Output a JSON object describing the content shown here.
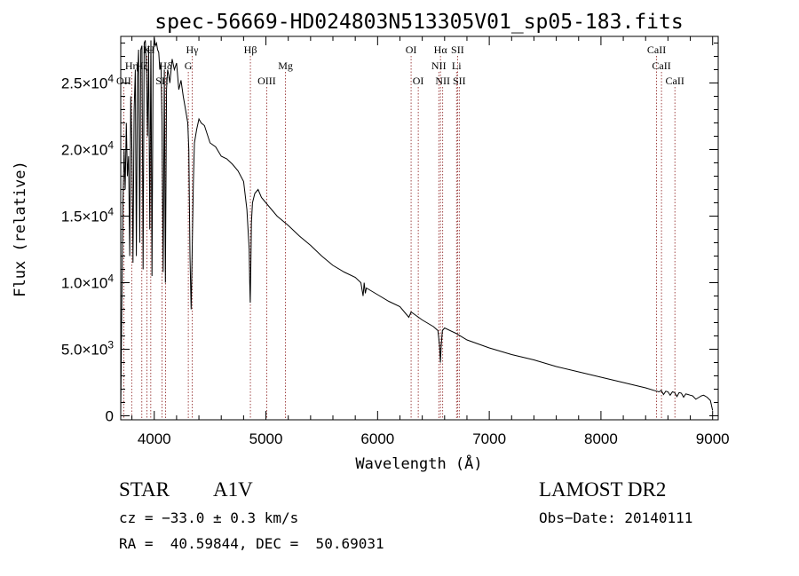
{
  "chart_data": {
    "type": "line",
    "title": "spec-56669-HD024803N513305V01_sp05-183.fits",
    "xlabel": "Wavelength (Å)",
    "ylabel": "Flux (relative)",
    "xlim": [
      3700,
      9050
    ],
    "ylim": [
      -300,
      28500
    ],
    "x_ticks": [
      {
        "v": 4000,
        "label": "4000"
      },
      {
        "v": 5000,
        "label": "5000"
      },
      {
        "v": 6000,
        "label": "6000"
      },
      {
        "v": 7000,
        "label": "7000"
      },
      {
        "v": 8000,
        "label": "8000"
      },
      {
        "v": 9000,
        "label": "9000"
      }
    ],
    "y_ticks": [
      {
        "v": 0,
        "mant": "0",
        "exp": ""
      },
      {
        "v": 5000,
        "mant": "5.0×10",
        "exp": "3"
      },
      {
        "v": 10000,
        "mant": "1.0×10",
        "exp": "4"
      },
      {
        "v": 15000,
        "mant": "1.5×10",
        "exp": "4"
      },
      {
        "v": 20000,
        "mant": "2.0×10",
        "exp": "4"
      },
      {
        "v": 25000,
        "mant": "2.5×10",
        "exp": "4"
      }
    ],
    "series": [
      {
        "x": [
          3700,
          3710,
          3720,
          3730,
          3740,
          3750,
          3760,
          3770,
          3780,
          3790,
          3800,
          3810,
          3820,
          3830,
          3840,
          3850,
          3860,
          3870,
          3880,
          3890,
          3900,
          3910,
          3920,
          3930,
          3940,
          3950,
          3960,
          3970,
          3980,
          3990,
          4000,
          4010,
          4020,
          4030,
          4040,
          4050,
          4060,
          4070,
          4080,
          4090,
          4100,
          4110,
          4120,
          4130,
          4140,
          4160,
          4180,
          4200,
          4220,
          4240,
          4260,
          4280,
          4300,
          4310,
          4320,
          4330,
          4340,
          4350,
          4360,
          4380,
          4400,
          4420,
          4450,
          4500,
          4550,
          4600,
          4650,
          4700,
          4750,
          4800,
          4830,
          4850,
          4855,
          4860,
          4865,
          4870,
          4880,
          4900,
          4930,
          4960,
          5000,
          5100,
          5200,
          5300,
          5400,
          5500,
          5600,
          5700,
          5800,
          5850,
          5870,
          5880,
          5890,
          5900,
          6000,
          6100,
          6200,
          6280,
          6300,
          6400,
          6500,
          6540,
          6555,
          6563,
          6570,
          6580,
          6600,
          6700,
          6800,
          7000,
          7200,
          7400,
          7600,
          7800,
          8000,
          8200,
          8400,
          8500,
          8520,
          8540,
          8560,
          8580,
          8600,
          8620,
          8640,
          8660,
          8680,
          8700,
          8720,
          8740,
          8760,
          8780,
          8800,
          8820,
          8850,
          8880,
          8900,
          8920,
          8950,
          8980,
          9000
        ],
        "y": [
          300,
          9000,
          16000,
          20000,
          17000,
          22000,
          18000,
          19500,
          12000,
          24000,
          20000,
          11500,
          23000,
          26000,
          12000,
          25500,
          27500,
          13000,
          27500,
          27800,
          11000,
          28000,
          28200,
          26000,
          21000,
          27800,
          14000,
          28200,
          10500,
          27000,
          28400,
          27800,
          28000,
          27500,
          27300,
          26000,
          26500,
          22000,
          10800,
          26000,
          10000,
          24500,
          26000,
          25600,
          25000,
          26800,
          26000,
          26500,
          24500,
          25200,
          24000,
          23000,
          22000,
          20000,
          12000,
          8000,
          12500,
          17500,
          20500,
          21500,
          22300,
          22000,
          21800,
          20500,
          20200,
          19500,
          19300,
          18900,
          18400,
          17600,
          15500,
          12500,
          10000,
          8500,
          11500,
          14500,
          16000,
          16700,
          17000,
          16400,
          16000,
          15000,
          14300,
          13500,
          12800,
          12000,
          11300,
          10800,
          10400,
          10000,
          9000,
          10000,
          9200,
          9600,
          9100,
          8600,
          8200,
          7400,
          7800,
          7200,
          6700,
          6400,
          5300,
          4000,
          5300,
          6400,
          6600,
          6200,
          5700,
          5100,
          4600,
          4200,
          3700,
          3300,
          2900,
          2500,
          2100,
          1850,
          1800,
          1900,
          1600,
          1850,
          1800,
          1550,
          1800,
          1750,
          1450,
          1750,
          1700,
          1400,
          1650,
          1600,
          1550,
          1500,
          1250,
          1400,
          1500,
          1550,
          1400,
          1150,
          400
        ]
      }
    ],
    "lines": [
      {
        "w": 3727,
        "label": "OII",
        "row": 2
      },
      {
        "w": 3798,
        "label": "Hη",
        "row": 1
      },
      {
        "w": 3889,
        "label": "Hζ",
        "row": 1
      },
      {
        "w": 3934,
        "label": "K",
        "row": 0
      },
      {
        "w": 3969,
        "label": "H",
        "row": 0
      },
      {
        "w": 4070,
        "label": "SII",
        "row": 2
      },
      {
        "w": 4102,
        "label": "Hδ",
        "row": 1
      },
      {
        "w": 4305,
        "label": "G",
        "row": 1
      },
      {
        "w": 4340,
        "label": "Hγ",
        "row": 0
      },
      {
        "w": 4861,
        "label": "Hβ",
        "row": 0
      },
      {
        "w": 5007,
        "label": "OIII",
        "row": 2
      },
      {
        "w": 5175,
        "label": "Mg",
        "row": 1
      },
      {
        "w": 6300,
        "label": "OI",
        "row": 0
      },
      {
        "w": 6364,
        "label": "OI",
        "row": 2
      },
      {
        "w": 6548,
        "label": "NII",
        "row": 1
      },
      {
        "w": 6563,
        "label": "Hα",
        "row": 0
      },
      {
        "w": 6583,
        "label": "NII",
        "row": 2
      },
      {
        "w": 6707,
        "label": "Li",
        "row": 1
      },
      {
        "w": 6716,
        "label": "SII",
        "row": 0
      },
      {
        "w": 6731,
        "label": "SII",
        "row": 2
      },
      {
        "w": 8498,
        "label": "CaII",
        "row": 0
      },
      {
        "w": 8542,
        "label": "CaII",
        "row": 1
      },
      {
        "w": 8662,
        "label": "CaII",
        "row": 2
      }
    ]
  },
  "info": {
    "class": "STAR",
    "subclass": "A1V",
    "survey": "LAMOST DR2",
    "cz": "cz = −33.0 ± 0.3 km/s",
    "obs_date": "Obs−Date: 20140111",
    "radec": "RA =  40.59844, DEC =  50.69031"
  }
}
